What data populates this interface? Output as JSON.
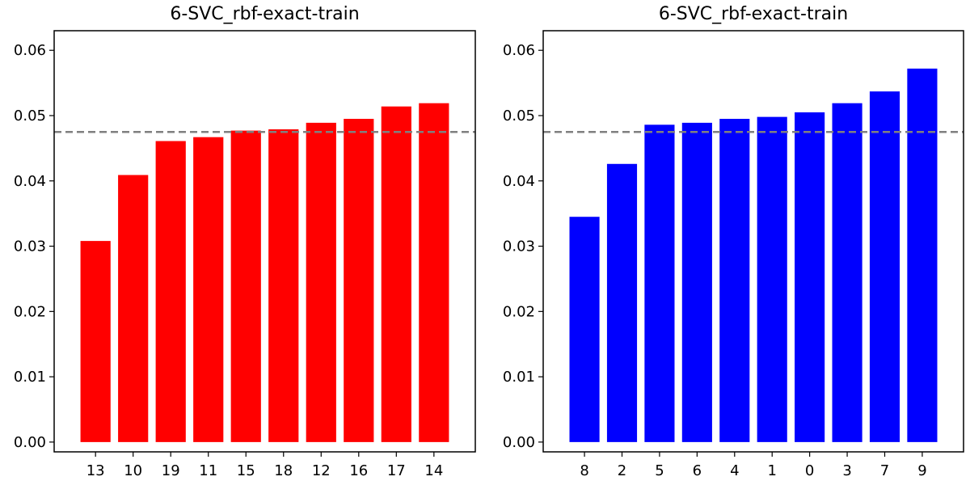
{
  "chart_data": [
    {
      "type": "bar",
      "title": "6-SVC_rbf-exact-train",
      "xlabel": "",
      "ylabel": "",
      "categories": [
        "13",
        "10",
        "19",
        "11",
        "15",
        "18",
        "12",
        "16",
        "17",
        "14"
      ],
      "values": [
        0.0308,
        0.0409,
        0.0461,
        0.0467,
        0.0477,
        0.0479,
        0.0489,
        0.0495,
        0.0514,
        0.0519
      ],
      "bar_color": "#ff0000",
      "reference_line": {
        "value": 0.0475,
        "style": "dashed",
        "color": "#808080"
      },
      "ylim": [
        -0.0015,
        0.063
      ],
      "yticks": [
        0.0,
        0.01,
        0.02,
        0.03,
        0.04,
        0.05,
        0.06
      ],
      "ytick_labels": [
        "0.00",
        "0.01",
        "0.02",
        "0.03",
        "0.04",
        "0.05",
        "0.06"
      ],
      "grid": false,
      "legend": "none"
    },
    {
      "type": "bar",
      "title": "6-SVC_rbf-exact-train",
      "xlabel": "",
      "ylabel": "",
      "categories": [
        "8",
        "2",
        "5",
        "6",
        "4",
        "1",
        "0",
        "3",
        "7",
        "9"
      ],
      "values": [
        0.0345,
        0.0426,
        0.0486,
        0.0489,
        0.0495,
        0.0498,
        0.0505,
        0.0519,
        0.0537,
        0.0572
      ],
      "bar_color": "#0000ff",
      "reference_line": {
        "value": 0.0475,
        "style": "dashed",
        "color": "#808080"
      },
      "ylim": [
        -0.0015,
        0.063
      ],
      "yticks": [
        0.0,
        0.01,
        0.02,
        0.03,
        0.04,
        0.05,
        0.06
      ],
      "ytick_labels": [
        "0.00",
        "0.01",
        "0.02",
        "0.03",
        "0.04",
        "0.05",
        "0.06"
      ],
      "grid": false,
      "legend": "none"
    }
  ]
}
